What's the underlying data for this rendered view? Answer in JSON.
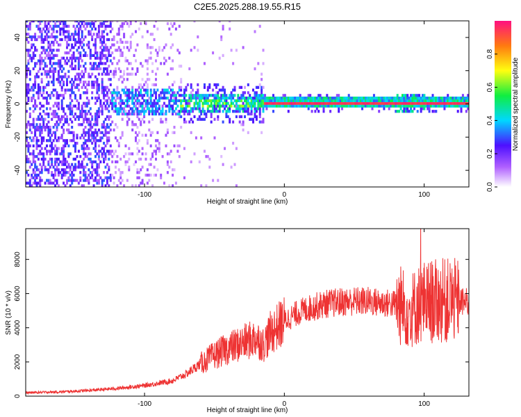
{
  "title": "C2E5.2025.288.19.55.R15",
  "chart_data": [
    {
      "type": "heatmap",
      "name": "spectrogram",
      "xlabel": "Height of straight line (km)",
      "ylabel": "Frequency (Hz)",
      "xlim": [
        -185,
        132
      ],
      "ylim": [
        -50,
        50
      ],
      "xticks": [
        -100,
        0,
        100
      ],
      "yticks": [
        -40,
        -20,
        0,
        20,
        40
      ],
      "ridge_frequency_hz": 0,
      "description_points": [
        {
          "x": -185,
          "amp": 0.25
        },
        {
          "x": -120,
          "amp": 0.35
        },
        {
          "x": -75,
          "amp": 0.4
        },
        {
          "x": -20,
          "amp": 0.55
        },
        {
          "x": 0,
          "amp": 1.0
        },
        {
          "x": 80,
          "amp": 0.95
        },
        {
          "x": 90,
          "amp": 0.6
        },
        {
          "x": 132,
          "amp": 0.95
        }
      ],
      "colorbar": {
        "label": "Normalized spectral amplitude",
        "ticks": [
          0.0,
          0.2,
          0.4,
          0.6,
          0.8
        ],
        "tick_labels": [
          "0.0",
          "0.2",
          "0.4",
          "0.6",
          "0.8"
        ],
        "range": [
          0,
          1
        ]
      }
    },
    {
      "type": "line",
      "name": "snr",
      "xlabel": "Height of straight line (km)",
      "ylabel": "SNR (10 * v/v)",
      "xlim": [
        -185,
        132
      ],
      "ylim": [
        0,
        9800
      ],
      "xticks": [
        -100,
        0,
        100
      ],
      "yticks": [
        0,
        2000,
        4000,
        6000,
        8000
      ],
      "color": "#ee3333",
      "series": [
        {
          "name": "SNR",
          "x": [
            -185,
            -160,
            -140,
            -120,
            -100,
            -80,
            -70,
            -60,
            -50,
            -40,
            -30,
            -20,
            -15,
            -10,
            0,
            10,
            20,
            30,
            40,
            50,
            60,
            70,
            80,
            85,
            90,
            95,
            100,
            110,
            120,
            132
          ],
          "y": [
            200,
            250,
            330,
            450,
            620,
            900,
            1300,
            1900,
            2400,
            2800,
            3100,
            3400,
            3000,
            3700,
            4400,
            4900,
            5200,
            5400,
            5500,
            5550,
            5550,
            5450,
            5400,
            5200,
            5000,
            5300,
            5500,
            5550,
            5600,
            5450
          ]
        }
      ]
    }
  ]
}
